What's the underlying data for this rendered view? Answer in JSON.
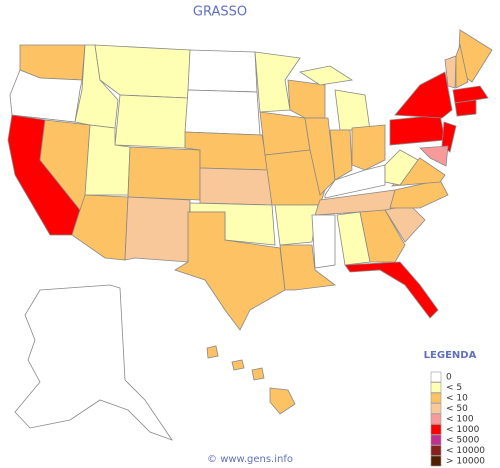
{
  "title": "GRASSO",
  "legend": {
    "title": "LEGENDA",
    "items": [
      {
        "label": "0",
        "color": "#ffffff"
      },
      {
        "label": "< 5",
        "color": "#ffffb4"
      },
      {
        "label": "< 10",
        "color": "#fcc264"
      },
      {
        "label": "< 50",
        "color": "#f8c89a"
      },
      {
        "label": "< 100",
        "color": "#f89a9a"
      },
      {
        "label": "< 1000",
        "color": "#ff0000"
      },
      {
        "label": "< 5000",
        "color": "#c03090"
      },
      {
        "label": "< 10000",
        "color": "#882020"
      },
      {
        "label": "> 10000",
        "color": "#502000"
      }
    ]
  },
  "footer": "© www.gens.info"
}
